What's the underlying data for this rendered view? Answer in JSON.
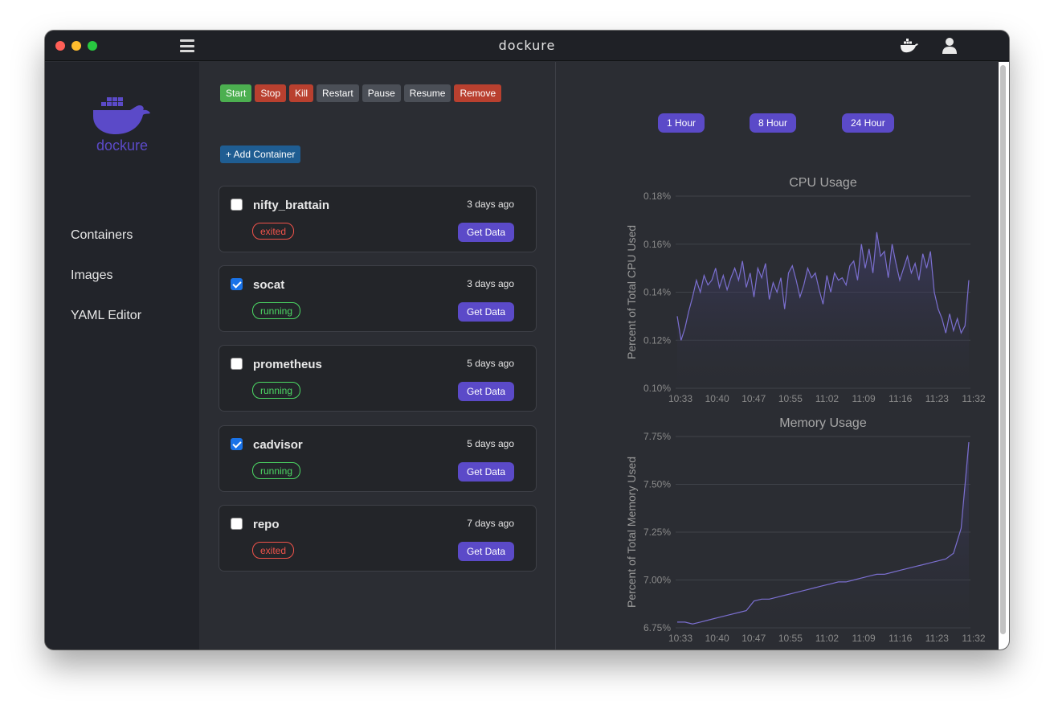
{
  "app": {
    "title": "dockure",
    "logo_text": "dockure"
  },
  "sidebar": {
    "items": [
      {
        "label": "Containers"
      },
      {
        "label": "Images"
      },
      {
        "label": "YAML Editor"
      }
    ]
  },
  "toolbar": {
    "start": "Start",
    "stop": "Stop",
    "kill": "Kill",
    "restart": "Restart",
    "pause": "Pause",
    "resume": "Resume",
    "remove": "Remove",
    "add_container": "+ Add Container"
  },
  "containers": [
    {
      "name": "nifty_brattain",
      "time": "3 days ago",
      "status": "exited",
      "checked": false,
      "action": "Get Data"
    },
    {
      "name": "socat",
      "time": "3 days ago",
      "status": "running",
      "checked": true,
      "action": "Get Data"
    },
    {
      "name": "prometheus",
      "time": "5 days ago",
      "status": "running",
      "checked": false,
      "action": "Get Data"
    },
    {
      "name": "cadvisor",
      "time": "5 days ago",
      "status": "running",
      "checked": true,
      "action": "Get Data"
    },
    {
      "name": "repo",
      "time": "7 days ago",
      "status": "exited",
      "checked": false,
      "action": "Get Data"
    }
  ],
  "time_ranges": [
    "1 Hour",
    "8 Hour",
    "24 Hour"
  ],
  "colors": {
    "accent": "#5b4ac8",
    "line": "#7b6fd0",
    "running": "#4cd964",
    "exited": "#f0534a"
  },
  "chart_data": [
    {
      "type": "area",
      "title": "CPU Usage",
      "ylabel": "Percent of Total CPU Used",
      "xlabel": "",
      "x_ticks": [
        "10:33",
        "10:40",
        "10:47",
        "10:55",
        "11:02",
        "11:09",
        "11:16",
        "11:23",
        "11:32"
      ],
      "y_ticks": [
        "0.18%",
        "0.16%",
        "0.14%",
        "0.12%",
        "0.10%"
      ],
      "ylim": [
        0.1,
        0.18
      ],
      "grid": true,
      "series": [
        {
          "values": [
            0.13,
            0.12,
            0.125,
            0.132,
            0.138,
            0.145,
            0.14,
            0.147,
            0.143,
            0.145,
            0.15,
            0.142,
            0.147,
            0.141,
            0.146,
            0.15,
            0.145,
            0.153,
            0.142,
            0.148,
            0.138,
            0.15,
            0.146,
            0.152,
            0.137,
            0.144,
            0.14,
            0.146,
            0.133,
            0.148,
            0.151,
            0.145,
            0.138,
            0.143,
            0.15,
            0.146,
            0.148,
            0.141,
            0.135,
            0.147,
            0.14,
            0.148,
            0.145,
            0.146,
            0.143,
            0.151,
            0.153,
            0.145,
            0.16,
            0.15,
            0.158,
            0.148,
            0.165,
            0.155,
            0.157,
            0.146,
            0.16,
            0.152,
            0.145,
            0.15,
            0.155,
            0.148,
            0.152,
            0.145,
            0.156,
            0.15,
            0.157,
            0.14,
            0.133,
            0.129,
            0.123,
            0.131,
            0.124,
            0.129,
            0.123,
            0.126,
            0.145
          ]
        }
      ]
    },
    {
      "type": "area",
      "title": "Memory Usage",
      "ylabel": "Percent of Total Memory Used",
      "xlabel": "",
      "x_ticks": [
        "10:33",
        "10:40",
        "10:47",
        "10:55",
        "11:02",
        "11:09",
        "11:16",
        "11:23",
        "11:32"
      ],
      "y_ticks": [
        "7.75%",
        "7.50%",
        "7.25%",
        "7.00%",
        "6.75%"
      ],
      "ylim": [
        6.75,
        7.75
      ],
      "grid": true,
      "series": [
        {
          "values": [
            6.78,
            6.78,
            6.77,
            6.78,
            6.79,
            6.8,
            6.81,
            6.82,
            6.83,
            6.84,
            6.89,
            6.9,
            6.9,
            6.91,
            6.92,
            6.93,
            6.94,
            6.95,
            6.96,
            6.97,
            6.98,
            6.99,
            6.99,
            7.0,
            7.01,
            7.02,
            7.03,
            7.03,
            7.04,
            7.05,
            7.06,
            7.07,
            7.08,
            7.09,
            7.1,
            7.11,
            7.14,
            7.27,
            7.72
          ]
        }
      ]
    }
  ]
}
